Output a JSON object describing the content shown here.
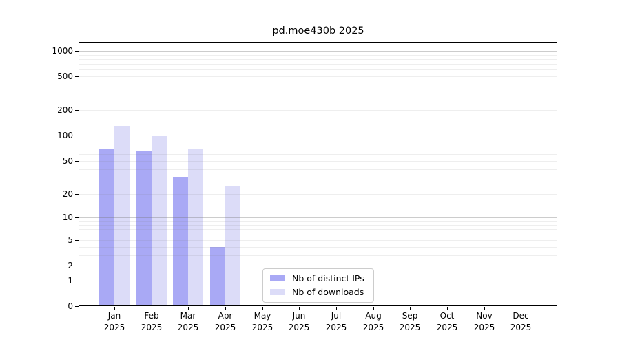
{
  "title": "pd.moe430b 2025",
  "chart_data": {
    "type": "bar",
    "title": "pd.moe430b 2025",
    "x_months": [
      "Jan",
      "Feb",
      "Mar",
      "Apr",
      "May",
      "Jun",
      "Jul",
      "Aug",
      "Sep",
      "Oct",
      "Nov",
      "Dec"
    ],
    "x_year": "2025",
    "categories": [
      "Jan 2025",
      "Feb 2025",
      "Mar 2025",
      "Apr 2025",
      "May 2025",
      "Jun 2025",
      "Jul 2025",
      "Aug 2025",
      "Sep 2025",
      "Oct 2025",
      "Nov 2025",
      "Dec 2025"
    ],
    "series": [
      {
        "name": "Nb of distinct IPs",
        "color": "#a9a9f5",
        "values": [
          70,
          65,
          32,
          4,
          0,
          0,
          0,
          0,
          0,
          0,
          0,
          0
        ]
      },
      {
        "name": "Nb of downloads",
        "color": "#dcdcf8",
        "values": [
          130,
          100,
          70,
          25,
          0,
          0,
          0,
          0,
          0,
          0,
          0,
          0
        ]
      }
    ],
    "y_ticks": [
      0,
      1,
      2,
      5,
      10,
      20,
      50,
      100,
      200,
      500,
      1000
    ],
    "y_scale": "log1p",
    "ylim": [
      0,
      1280
    ],
    "xlabel": "",
    "ylabel": "",
    "grid": true,
    "legend_position": "lower-center"
  },
  "colors": {
    "bar_distinct_ips": "#a9a9f5",
    "bar_downloads": "#dcdcf8",
    "grid_major": "#c6c6c6",
    "grid_minor": "#efefef",
    "axis": "#000000",
    "legend_border": "#cccccc",
    "background": "#ffffff"
  }
}
